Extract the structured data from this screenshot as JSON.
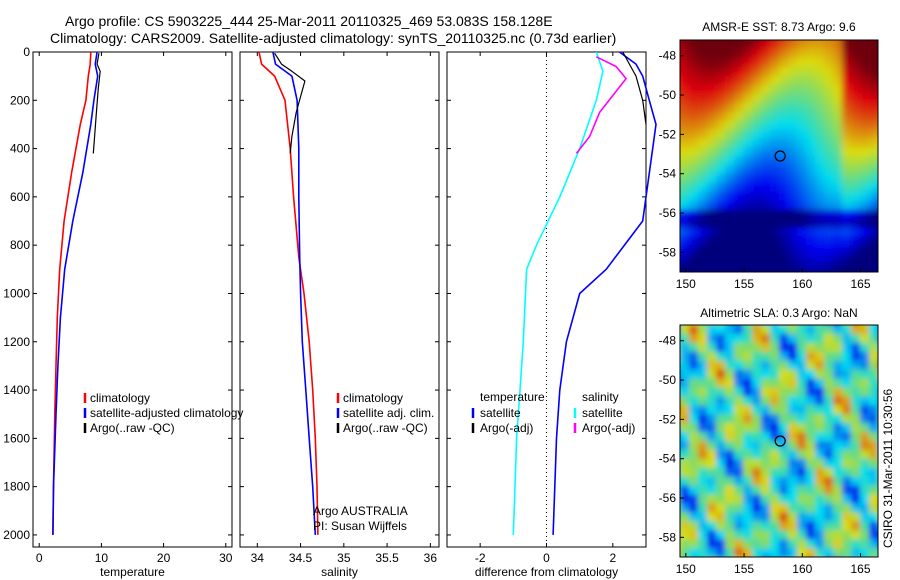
{
  "title": {
    "line1": "Argo profile: CS 5903225_444 25-Mar-2011 20110325_469 53.083S 158.128E",
    "line2": "Climatology: CARS2009. Satellite-adjusted climatology: synTS_20110325.nc (0.73d earlier)"
  },
  "side_label": "CSIRO 31-Mar-2011 10:30:56",
  "colors": {
    "climatology": "#ff0000",
    "satellite": "#0000ff",
    "argo": "#000000",
    "temp_satellite_diff": "#00ffff",
    "temp_argo_diff": "#ff00ff",
    "zero_line": "#000000"
  },
  "chart_data": [
    {
      "type": "line",
      "xlabel": "temperature",
      "ylabel": "",
      "xlim": [
        -1,
        31
      ],
      "ylim": [
        2050,
        0
      ],
      "y_reversed": true,
      "xticks": [
        "0",
        "10",
        "20",
        "30"
      ],
      "yticks": [
        "0",
        "200",
        "400",
        "600",
        "800",
        "1000",
        "1200",
        "1400",
        "1600",
        "1800",
        "2000"
      ],
      "legend": [
        "climatology",
        "satellite-adjusted climatology",
        "Argo(..raw -QC)"
      ],
      "series": [
        {
          "name": "climatology",
          "color": "red",
          "x": [
            8.3,
            8.2,
            7.9,
            7.5,
            6.6,
            5.2,
            4.0,
            3.3,
            2.9,
            2.7,
            2.5,
            2.3,
            2.2
          ],
          "y": [
            0,
            50,
            100,
            200,
            300,
            500,
            700,
            900,
            1100,
            1300,
            1500,
            1800,
            2000
          ]
        },
        {
          "name": "satellite-adjusted climatology",
          "color": "blue",
          "x": [
            9.3,
            9.0,
            9.4,
            8.8,
            8.3,
            7.0,
            5.4,
            4.1,
            3.4,
            3.0,
            2.7,
            2.3,
            2.2
          ],
          "y": [
            0,
            50,
            100,
            200,
            300,
            500,
            700,
            900,
            1100,
            1300,
            1500,
            1800,
            2000
          ]
        },
        {
          "name": "Argo(..raw -QC)",
          "color": "black",
          "x": [
            9.6,
            9.3,
            9.8,
            9.5,
            9.2,
            8.9,
            8.7
          ],
          "y": [
            5,
            50,
            80,
            150,
            250,
            350,
            420
          ]
        }
      ]
    },
    {
      "type": "line",
      "xlabel": "salinity",
      "ylabel": "",
      "xlim": [
        33.8,
        36.1
      ],
      "ylim": [
        2050,
        0
      ],
      "y_reversed": true,
      "xticks": [
        "34",
        "34.5",
        "35",
        "35.5",
        "36"
      ],
      "legend": [
        "climatology",
        "satellite adj. clim.",
        "Argo(..raw -QC)"
      ],
      "annotations": [
        "Argo AUSTRALIA",
        "PI: Susan Wijffels"
      ],
      "series": [
        {
          "name": "climatology",
          "color": "red",
          "x": [
            34.02,
            34.05,
            34.2,
            34.32,
            34.38,
            34.42,
            34.48,
            34.54,
            34.6,
            34.64,
            34.67,
            34.69,
            34.7
          ],
          "y": [
            0,
            50,
            100,
            200,
            400,
            600,
            850,
            1000,
            1200,
            1400,
            1600,
            1800,
            2000
          ]
        },
        {
          "name": "satellite adj. clim.",
          "color": "blue",
          "x": [
            34.18,
            34.21,
            34.4,
            34.46,
            34.48,
            34.48,
            34.49,
            34.5,
            34.52,
            34.56,
            34.6,
            34.64,
            34.67
          ],
          "y": [
            0,
            50,
            100,
            200,
            400,
            600,
            850,
            1000,
            1200,
            1400,
            1600,
            1800,
            2000
          ]
        },
        {
          "name": "Argo(..raw -QC)",
          "color": "black",
          "x": [
            34.2,
            34.28,
            34.4,
            34.55,
            34.45,
            34.4,
            34.38
          ],
          "y": [
            5,
            50,
            80,
            120,
            250,
            350,
            420
          ]
        }
      ]
    },
    {
      "type": "line",
      "xlabel": "difference from climatology",
      "ylabel": "",
      "xlim": [
        -3,
        3
      ],
      "ylim": [
        2050,
        0
      ],
      "y_reversed": true,
      "xticks": [
        "-2",
        "0",
        "2"
      ],
      "zero_line": true,
      "legend_groups": [
        {
          "title": "temperature",
          "entries": [
            "satellite",
            "Argo(-adj)"
          ]
        },
        {
          "title": "salinity",
          "entries": [
            "satellite",
            "Argo(-adj)"
          ]
        }
      ],
      "series": [
        {
          "name": "temperature satellite",
          "color": "blue",
          "x": [
            2.2,
            2.7,
            2.9,
            3.1,
            3.3,
            2.9,
            1.8,
            1.0,
            0.6,
            0.4,
            0.3,
            0.25,
            0.2
          ],
          "y": [
            0,
            50,
            100,
            200,
            300,
            700,
            900,
            1000,
            1200,
            1400,
            1600,
            1800,
            2000
          ]
        },
        {
          "name": "temperature Argo(-adj)",
          "color": "black",
          "x": [
            2.3,
            2.5,
            2.7,
            2.9,
            3.0
          ],
          "y": [
            0,
            50,
            100,
            200,
            300
          ]
        },
        {
          "name": "salinity satellite",
          "color": "cyan",
          "x": [
            1.5,
            1.7,
            1.5,
            1.0,
            0.4,
            -0.3,
            -0.6,
            -0.7,
            -0.8,
            -0.9,
            -0.95,
            -1.0
          ],
          "y": [
            0,
            80,
            200,
            400,
            600,
            800,
            900,
            1200,
            1400,
            1600,
            1800,
            2000
          ]
        },
        {
          "name": "salinity Argo(-adj)",
          "color": "magenta",
          "x": [
            1.5,
            2.1,
            2.4,
            1.6,
            1.3,
            0.9
          ],
          "y": [
            20,
            60,
            110,
            250,
            350,
            420
          ]
        }
      ]
    },
    {
      "type": "heatmap",
      "title": "AMSR-E SST: 8.73 Argo: 9.6",
      "xlim": [
        149.5,
        166.5
      ],
      "ylim": [
        -59,
        -47.2
      ],
      "xticks": [
        "150",
        "155",
        "160",
        "165"
      ],
      "yticks": [
        "-48",
        "-50",
        "-52",
        "-54",
        "-56",
        "-58"
      ],
      "marker": {
        "lon": 158.1,
        "lat": -53.1
      }
    },
    {
      "type": "heatmap",
      "title": "Altimetric SLA: 0.3 Argo: NaN",
      "xlim": [
        149.5,
        166.5
      ],
      "ylim": [
        -59,
        -47.2
      ],
      "xticks": [
        "150",
        "155",
        "160",
        "165"
      ],
      "yticks": [
        "-48",
        "-50",
        "-52",
        "-54",
        "-56",
        "-58"
      ],
      "marker": {
        "lon": 158.1,
        "lat": -53.1
      }
    }
  ]
}
